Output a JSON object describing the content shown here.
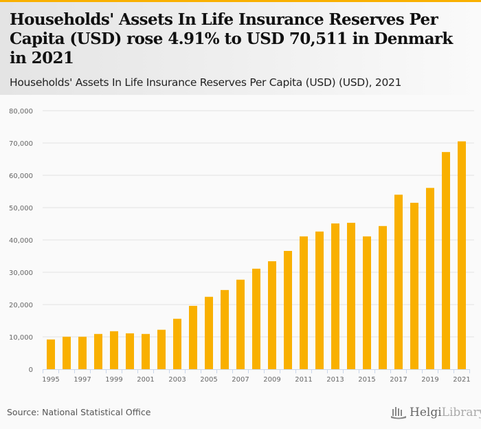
{
  "header": {
    "title": "Households' Assets In Life Insurance Reserves Per Capita (USD) rose 4.91% to USD 70,511 in Denmark in 2021",
    "subtitle": "Households' Assets In Life Insurance Reserves Per Capita (USD) (USD), 2021"
  },
  "footer": {
    "source": "Source: National Statistical Office",
    "logo_bold": "Helgi",
    "logo_light": "Library."
  },
  "colors": {
    "bar": "#f9b000",
    "accent": "#f9b000",
    "grid": "#e3e3e3",
    "axis": "#c9d6ea"
  },
  "chart_data": {
    "type": "bar",
    "title": "Households' Assets In Life Insurance Reserves Per Capita (USD) (USD), 2021",
    "xlabel": "",
    "ylabel": "",
    "ylim": [
      0,
      80000
    ],
    "yticks": [
      0,
      10000,
      20000,
      30000,
      40000,
      50000,
      60000,
      70000,
      80000
    ],
    "ytick_labels": [
      "0",
      "10,000",
      "20,000",
      "30,000",
      "40,000",
      "50,000",
      "60,000",
      "70,000",
      "80,000"
    ],
    "categories": [
      "1995",
      "1996",
      "1997",
      "1998",
      "1999",
      "2000",
      "2001",
      "2002",
      "2003",
      "2004",
      "2005",
      "2006",
      "2007",
      "2008",
      "2009",
      "2010",
      "2011",
      "2012",
      "2013",
      "2014",
      "2015",
      "2016",
      "2017",
      "2018",
      "2019",
      "2020",
      "2021"
    ],
    "xtick_labels": [
      "1995",
      "1997",
      "1999",
      "2001",
      "2003",
      "2005",
      "2007",
      "2009",
      "2011",
      "2013",
      "2015",
      "2017",
      "2019",
      "2021"
    ],
    "values": [
      9200,
      10050,
      10050,
      10900,
      11750,
      11100,
      10900,
      12200,
      15600,
      19600,
      22400,
      24500,
      27700,
      31100,
      33400,
      36600,
      41100,
      42600,
      45100,
      45300,
      41100,
      44300,
      54000,
      51500,
      56100,
      67200,
      70511
    ],
    "grid": true,
    "legend": "none"
  }
}
